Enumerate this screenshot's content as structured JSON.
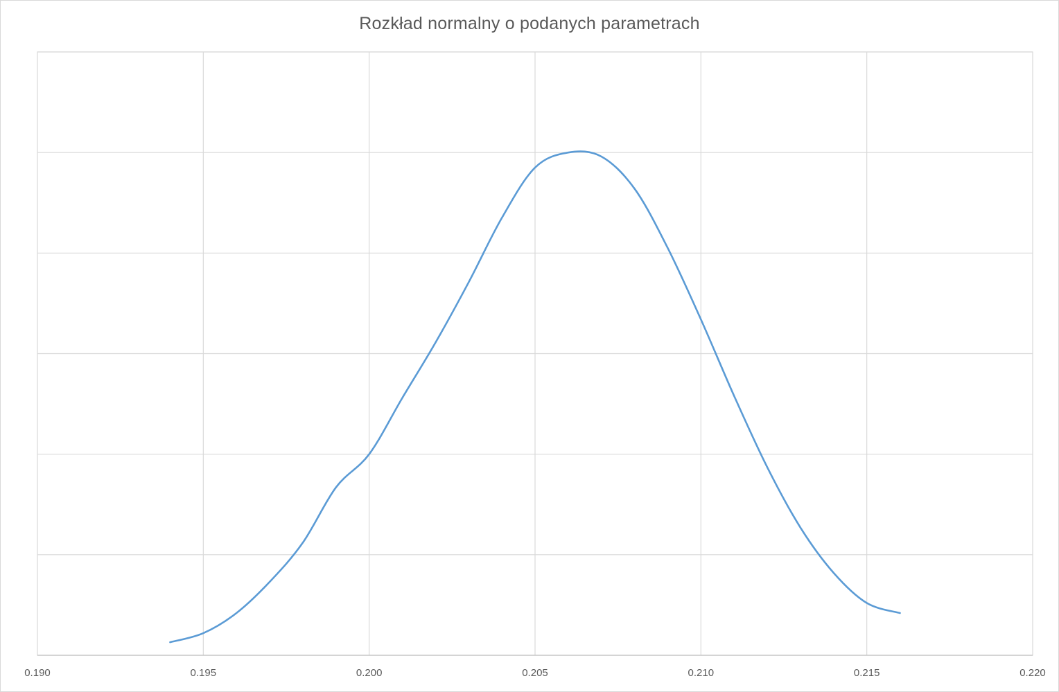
{
  "chart_data": {
    "type": "line",
    "title": "Rozkład normalny o podanych parametrach",
    "xlabel": "",
    "ylabel": "",
    "xlim": [
      0.19,
      0.22
    ],
    "ylim": [
      0,
      6
    ],
    "x_ticks": [
      0.19,
      0.195,
      0.2,
      0.205,
      0.21,
      0.215,
      0.22
    ],
    "x_tick_labels": [
      "0.190",
      "0.195",
      "0.200",
      "0.205",
      "0.210",
      "0.215",
      "0.220"
    ],
    "y_gridlines": [
      1,
      2,
      3,
      4,
      5,
      6
    ],
    "y_tick_labels_visible": false,
    "grid": true,
    "legend": "none",
    "series": [
      {
        "name": "Rozkład normalny",
        "color": "#5b9bd5",
        "x": [
          0.194,
          0.195,
          0.196,
          0.197,
          0.198,
          0.199,
          0.2,
          0.201,
          0.202,
          0.203,
          0.204,
          0.205,
          0.206,
          0.207,
          0.208,
          0.209,
          0.21,
          0.211,
          0.212,
          0.213,
          0.214,
          0.215,
          0.216
        ],
        "y": [
          0.13,
          0.22,
          0.42,
          0.73,
          1.12,
          1.67,
          2.0,
          2.56,
          3.11,
          3.71,
          4.35,
          4.85,
          5.0,
          4.96,
          4.64,
          4.05,
          3.34,
          2.58,
          1.87,
          1.27,
          0.82,
          0.52,
          0.42
        ]
      }
    ]
  }
}
